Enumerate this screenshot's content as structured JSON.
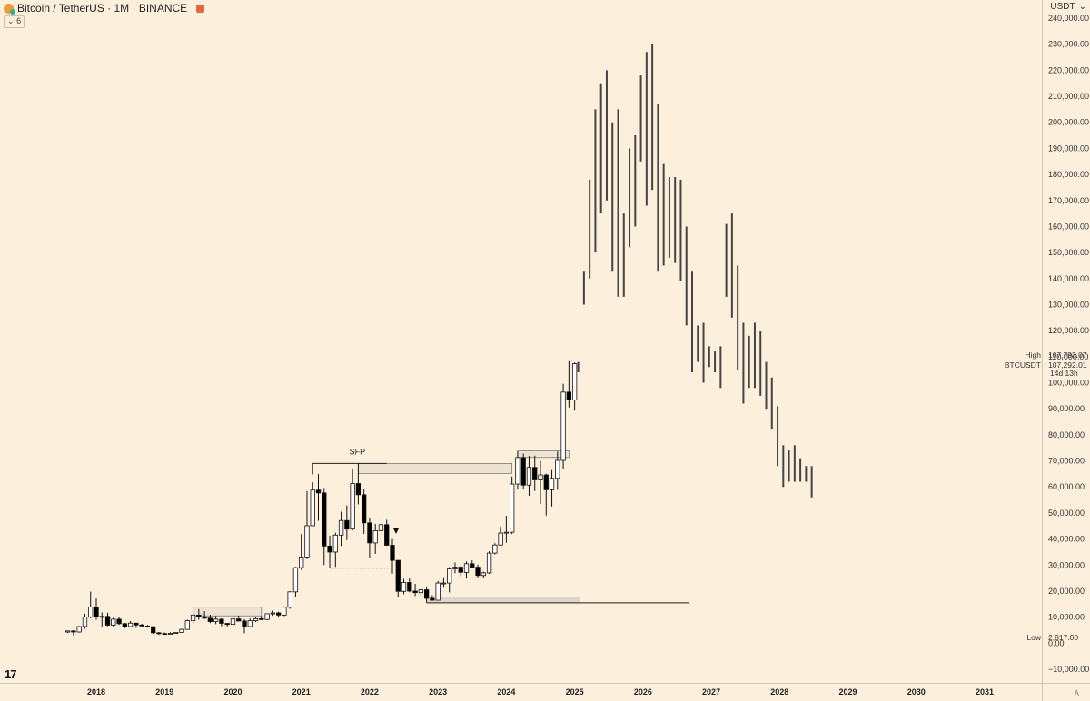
{
  "header": {
    "title": "Bitcoin / TetherUS · 1M · BINANCE",
    "collapse_count": "6",
    "currency": "USDT"
  },
  "labels": {
    "sfp": "SFP",
    "high_label": "High",
    "high_value": "107,793.07",
    "symbol_label": "BTCUSDT",
    "symbol_value": "107,292.01",
    "countdown": "14d 13h",
    "low_label": "Low",
    "low_value": "2,817.00",
    "logo": "17",
    "scale": "A"
  },
  "colors": {
    "background": "#fcefdc",
    "up_body": "#ffffff",
    "down_body": "#000000",
    "projection": "#444444",
    "zone_fill": "#d3cbc0"
  },
  "chart_data": {
    "type": "candlestick",
    "interval": "1M",
    "ylim": [
      -15000,
      242000
    ],
    "y_ticks": [
      -10000,
      0,
      10000,
      20000,
      30000,
      40000,
      50000,
      60000,
      70000,
      80000,
      90000,
      100000,
      110000,
      120000,
      130000,
      140000,
      150000,
      160000,
      170000,
      180000,
      190000,
      200000,
      210000,
      220000,
      230000,
      240000
    ],
    "y_tick_labels": [
      "−10,000.00",
      "0.00",
      "10,000.00",
      "20,000.00",
      "30,000.00",
      "40,000.00",
      "50,000.00",
      "60,000.00",
      "70,000.00",
      "80,000.00",
      "90,000.00",
      "100,000.00",
      "110,000.00",
      "120,000.00",
      "130,000.00",
      "140,000.00",
      "150,000.00",
      "160,000.00",
      "170,000.00",
      "180,000.00",
      "190,000.00",
      "200,000.00",
      "210,000.00",
      "220,000.00",
      "230,000.00",
      "240,000.00"
    ],
    "x_range": [
      "2017-06",
      "2031-09"
    ],
    "x_ticks": [
      "2018-01",
      "2019-01",
      "2020-01",
      "2021-01",
      "2022-01",
      "2023-01",
      "2024-01",
      "2025-01",
      "2026-01",
      "2027-01",
      "2028-01",
      "2029-01",
      "2030-01",
      "2031-01"
    ],
    "x_tick_labels": [
      "2018",
      "2019",
      "2020",
      "2021",
      "2022",
      "2023",
      "2024",
      "2025",
      "2026",
      "2027",
      "2028",
      "2029",
      "2030",
      "2031"
    ],
    "ohlc": [
      [
        "2017-08",
        4300,
        4800,
        3900,
        4700
      ],
      [
        "2017-09",
        4700,
        5000,
        2900,
        4300
      ],
      [
        "2017-10",
        4300,
        6500,
        4100,
        6400
      ],
      [
        "2017-11",
        6400,
        11300,
        5500,
        10000
      ],
      [
        "2017-12",
        10000,
        19800,
        9500,
        13900
      ],
      [
        "2018-01",
        13900,
        17200,
        9000,
        10200
      ],
      [
        "2018-02",
        10200,
        11800,
        6000,
        10300
      ],
      [
        "2018-03",
        10300,
        11700,
        6500,
        6900
      ],
      [
        "2018-04",
        6900,
        9800,
        6400,
        9200
      ],
      [
        "2018-05",
        9200,
        10000,
        7000,
        7500
      ],
      [
        "2018-06",
        7500,
        7800,
        5800,
        6400
      ],
      [
        "2018-07",
        6400,
        8500,
        6100,
        7700
      ],
      [
        "2018-08",
        7700,
        7800,
        5900,
        7000
      ],
      [
        "2018-09",
        7000,
        7400,
        6100,
        6600
      ],
      [
        "2018-10",
        6600,
        7000,
        6100,
        6300
      ],
      [
        "2018-11",
        6300,
        6600,
        3600,
        4000
      ],
      [
        "2018-12",
        4000,
        4300,
        3200,
        3700
      ],
      [
        "2019-01",
        3700,
        4100,
        3300,
        3400
      ],
      [
        "2019-02",
        3400,
        4200,
        3300,
        3800
      ],
      [
        "2019-03",
        3800,
        4100,
        3700,
        4100
      ],
      [
        "2019-04",
        4100,
        5600,
        4000,
        5300
      ],
      [
        "2019-05",
        5300,
        9000,
        5300,
        8600
      ],
      [
        "2019-06",
        8600,
        13800,
        7400,
        10800
      ],
      [
        "2019-07",
        10800,
        13100,
        9000,
        10100
      ],
      [
        "2019-08",
        10100,
        12300,
        9300,
        9600
      ],
      [
        "2019-09",
        9600,
        10900,
        7700,
        8300
      ],
      [
        "2019-10",
        8300,
        10400,
        7300,
        9200
      ],
      [
        "2019-11",
        9200,
        9500,
        6500,
        7600
      ],
      [
        "2019-12",
        7600,
        7700,
        6400,
        7200
      ],
      [
        "2020-01",
        7200,
        9600,
        6900,
        9300
      ],
      [
        "2020-02",
        9300,
        10500,
        8400,
        8500
      ],
      [
        "2020-03",
        8500,
        9200,
        3800,
        6400
      ],
      [
        "2020-04",
        6400,
        9500,
        6200,
        8600
      ],
      [
        "2020-05",
        8600,
        10100,
        8100,
        9400
      ],
      [
        "2020-06",
        9400,
        10400,
        8800,
        9100
      ],
      [
        "2020-07",
        9100,
        11400,
        8900,
        11300
      ],
      [
        "2020-08",
        11300,
        12500,
        10500,
        11600
      ],
      [
        "2020-09",
        11600,
        12100,
        9800,
        10800
      ],
      [
        "2020-10",
        10800,
        14100,
        10400,
        13800
      ],
      [
        "2020-11",
        13800,
        19900,
        13200,
        19700
      ],
      [
        "2020-12",
        19700,
        29300,
        17600,
        29000
      ],
      [
        "2021-01",
        29000,
        41900,
        28100,
        33100
      ],
      [
        "2021-02",
        33100,
        58400,
        32300,
        45100
      ],
      [
        "2021-03",
        45100,
        61800,
        45000,
        58800
      ],
      [
        "2021-04",
        58800,
        64900,
        47000,
        57700
      ],
      [
        "2021-05",
        57700,
        59600,
        30000,
        37300
      ],
      [
        "2021-06",
        37300,
        41300,
        28800,
        35000
      ],
      [
        "2021-07",
        35000,
        42400,
        29300,
        41500
      ],
      [
        "2021-08",
        41500,
        50500,
        37300,
        47100
      ],
      [
        "2021-09",
        47100,
        52900,
        39600,
        43800
      ],
      [
        "2021-10",
        43800,
        67000,
        43300,
        61300
      ],
      [
        "2021-11",
        61300,
        69000,
        53300,
        57000
      ],
      [
        "2021-12",
        57000,
        59100,
        42000,
        46200
      ],
      [
        "2022-01",
        46200,
        47900,
        32900,
        38500
      ],
      [
        "2022-02",
        38500,
        45800,
        34300,
        43200
      ],
      [
        "2022-03",
        43200,
        48200,
        37200,
        45500
      ],
      [
        "2022-04",
        45500,
        47400,
        37400,
        37600
      ],
      [
        "2022-05",
        37600,
        40000,
        26700,
        31800
      ],
      [
        "2022-06",
        31800,
        31900,
        17600,
        19900
      ],
      [
        "2022-07",
        19900,
        24700,
        18800,
        23300
      ],
      [
        "2022-08",
        23300,
        25200,
        19500,
        20000
      ],
      [
        "2022-09",
        20000,
        22800,
        18100,
        19400
      ],
      [
        "2022-10",
        19400,
        21000,
        18200,
        20500
      ],
      [
        "2022-11",
        20500,
        21500,
        15500,
        17200
      ],
      [
        "2022-12",
        17200,
        18400,
        16300,
        16500
      ],
      [
        "2023-01",
        16500,
        23900,
        16500,
        23100
      ],
      [
        "2023-02",
        23100,
        25300,
        21300,
        23100
      ],
      [
        "2023-03",
        23100,
        29200,
        19500,
        28500
      ],
      [
        "2023-04",
        28500,
        31000,
        26900,
        29200
      ],
      [
        "2023-05",
        29200,
        29800,
        25800,
        27200
      ],
      [
        "2023-06",
        27200,
        31400,
        24800,
        30500
      ],
      [
        "2023-07",
        30500,
        31800,
        28900,
        29200
      ],
      [
        "2023-08",
        29200,
        30200,
        25100,
        26000
      ],
      [
        "2023-09",
        26000,
        27500,
        24900,
        27000
      ],
      [
        "2023-10",
        27000,
        35300,
        26600,
        34600
      ],
      [
        "2023-11",
        34600,
        38400,
        34100,
        37700
      ],
      [
        "2023-12",
        37700,
        44700,
        37600,
        42300
      ],
      [
        "2024-01",
        42300,
        48900,
        38600,
        42600
      ],
      [
        "2024-02",
        42600,
        64000,
        41900,
        61100
      ],
      [
        "2024-03",
        61100,
        73700,
        59000,
        71300
      ],
      [
        "2024-04",
        71300,
        72800,
        59200,
        60700
      ],
      [
        "2024-05",
        60700,
        71900,
        56600,
        67500
      ],
      [
        "2024-06",
        67500,
        72000,
        58400,
        62700
      ],
      [
        "2024-07",
        62700,
        70000,
        53500,
        64600
      ],
      [
        "2024-08",
        64600,
        65100,
        49000,
        58900
      ],
      [
        "2024-09",
        58900,
        66500,
        52500,
        63300
      ],
      [
        "2024-10",
        63300,
        73600,
        58900,
        70200
      ],
      [
        "2024-11",
        70200,
        99600,
        66800,
        96400
      ],
      [
        "2024-12",
        96400,
        108300,
        90500,
        93400
      ],
      [
        "2025-01",
        93400,
        107800,
        89300,
        107300
      ]
    ],
    "projection_ranges": [
      [
        "2025-01",
        104000,
        108000
      ],
      [
        "2025-02",
        130000,
        143000
      ],
      [
        "2025-03",
        140000,
        178000
      ],
      [
        "2025-04",
        150000,
        205000
      ],
      [
        "2025-05",
        165000,
        215000
      ],
      [
        "2025-06",
        170000,
        220000
      ],
      [
        "2025-07",
        143000,
        200000
      ],
      [
        "2025-08",
        133000,
        205000
      ],
      [
        "2025-09",
        133000,
        165000
      ],
      [
        "2025-10",
        152000,
        190000
      ],
      [
        "2025-11",
        160000,
        195000
      ],
      [
        "2025-12",
        185000,
        218000
      ],
      [
        "2026-01",
        168000,
        227000
      ],
      [
        "2026-02",
        174000,
        230000
      ],
      [
        "2026-03",
        143000,
        207000
      ],
      [
        "2026-04",
        145000,
        184000
      ],
      [
        "2026-05",
        148000,
        179000
      ],
      [
        "2026-06",
        146000,
        179000
      ],
      [
        "2026-07",
        139000,
        178000
      ],
      [
        "2026-08",
        122000,
        160000
      ],
      [
        "2026-09",
        104000,
        143000
      ],
      [
        "2026-10",
        108000,
        122000
      ],
      [
        "2026-11",
        100000,
        123000
      ],
      [
        "2026-12",
        106000,
        114000
      ],
      [
        "2027-01",
        104000,
        112000
      ],
      [
        "2027-02",
        98000,
        114000
      ],
      [
        "2027-03",
        133000,
        161000
      ],
      [
        "2027-04",
        125000,
        165000
      ],
      [
        "2027-05",
        105000,
        145000
      ],
      [
        "2027-06",
        92000,
        123000
      ],
      [
        "2027-07",
        98000,
        118000
      ],
      [
        "2027-08",
        98000,
        123000
      ],
      [
        "2027-09",
        95000,
        120000
      ],
      [
        "2027-10",
        90000,
        108000
      ],
      [
        "2027-11",
        82000,
        102000
      ],
      [
        "2027-12",
        68000,
        91000
      ],
      [
        "2028-01",
        60000,
        76000
      ],
      [
        "2028-02",
        62000,
        74000
      ],
      [
        "2028-03",
        62000,
        76000
      ],
      [
        "2028-04",
        62000,
        71000
      ],
      [
        "2028-05",
        62000,
        68000
      ],
      [
        "2028-06",
        56000,
        68000
      ]
    ],
    "annotations": {
      "sfp_point": [
        "2021-11",
        69000
      ],
      "high_line": {
        "y": 69000,
        "from": "2021-03",
        "to": "2022-04"
      },
      "range_boxes": [
        {
          "from": "2021-11",
          "to": "2024-02",
          "y_low": 65200,
          "y_high": 69000
        },
        {
          "from": "2024-03",
          "to": "2024-12",
          "y_low": 71300,
          "y_high": 73800
        },
        {
          "from": "2019-06",
          "to": "2020-06",
          "y_low": 10500,
          "y_high": 13800
        }
      ],
      "support_line": {
        "y": 15500,
        "from": "2022-11",
        "to": "2026-09"
      },
      "support_zone": {
        "from": "2022-11",
        "to": "2025-02",
        "y_low": 15500,
        "y_high": 17600
      },
      "dotted_line": {
        "y": 28800,
        "from": "2021-06",
        "to": "2022-05"
      },
      "down_marker": [
        "2022-05",
        43000
      ]
    }
  }
}
